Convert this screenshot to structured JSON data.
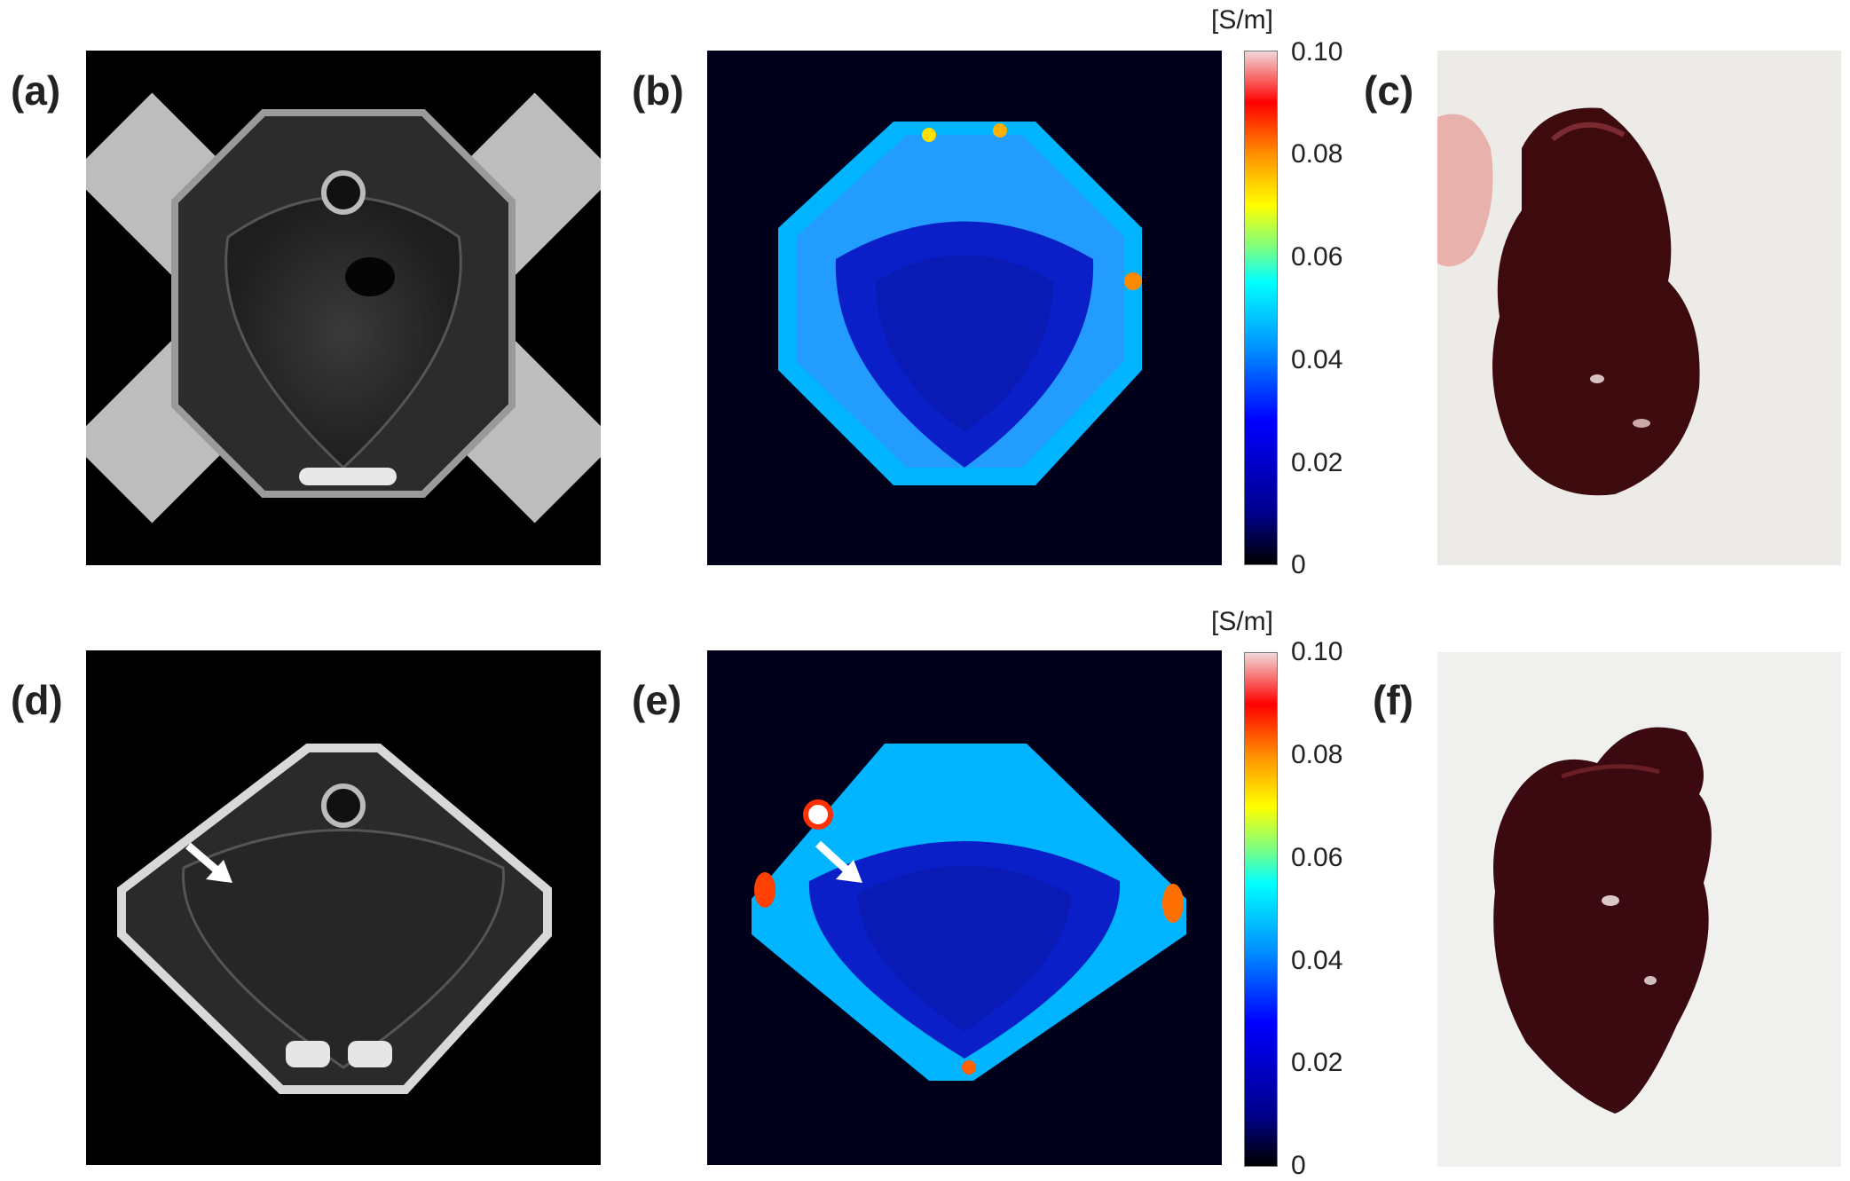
{
  "panels": {
    "a": {
      "label": "(a)"
    },
    "b": {
      "label": "(b)"
    },
    "c": {
      "label": "(c)"
    },
    "d": {
      "label": "(d)"
    },
    "e": {
      "label": "(e)"
    },
    "f": {
      "label": "(f)"
    }
  },
  "colorbar_top": {
    "unit": "[S/m]",
    "ticks": [
      "0.10",
      "0.08",
      "0.06",
      "0.04",
      "0.02",
      "0"
    ]
  },
  "colorbar_bottom": {
    "unit": "[S/m]",
    "ticks": [
      "0.10",
      "0.08",
      "0.06",
      "0.04",
      "0.02",
      "0"
    ]
  }
}
